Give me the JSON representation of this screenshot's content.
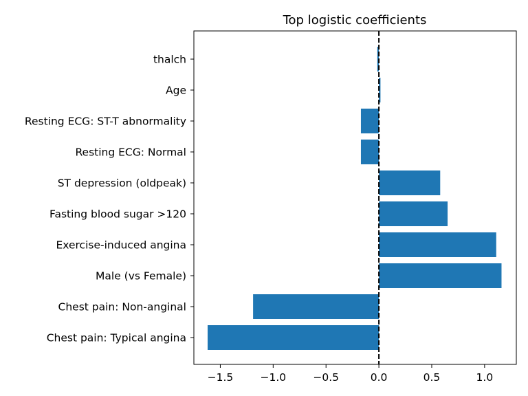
{
  "chart_data": {
    "type": "bar",
    "orientation": "horizontal",
    "title": "Top logistic coefficients",
    "xlabel": "",
    "ylabel": "",
    "categories": [
      "Chest pain: Typical angina",
      "Chest pain: Non-anginal",
      "Male (vs Female)",
      "Exercise-induced angina",
      "Fasting blood sugar >120",
      "ST depression (oldpeak)",
      "Resting ECG: Normal",
      "Resting ECG: ST-T abnormality",
      "Age",
      "thalch"
    ],
    "values": [
      -1.62,
      -1.19,
      1.16,
      1.11,
      0.65,
      0.58,
      -0.17,
      -0.17,
      0.015,
      -0.015
    ],
    "xlim": [
      -1.75,
      1.3
    ],
    "xticks": [
      -1.5,
      -1.0,
      -0.5,
      0.0,
      0.5,
      1.0
    ],
    "xtick_labels": [
      "−1.5",
      "−1.0",
      "−0.5",
      "0.0",
      "0.5",
      "1.0"
    ],
    "reference_line": 0.0,
    "bar_color": "#1f77b4",
    "reference_line_color": "#000000",
    "grid": false,
    "legend": "none"
  }
}
